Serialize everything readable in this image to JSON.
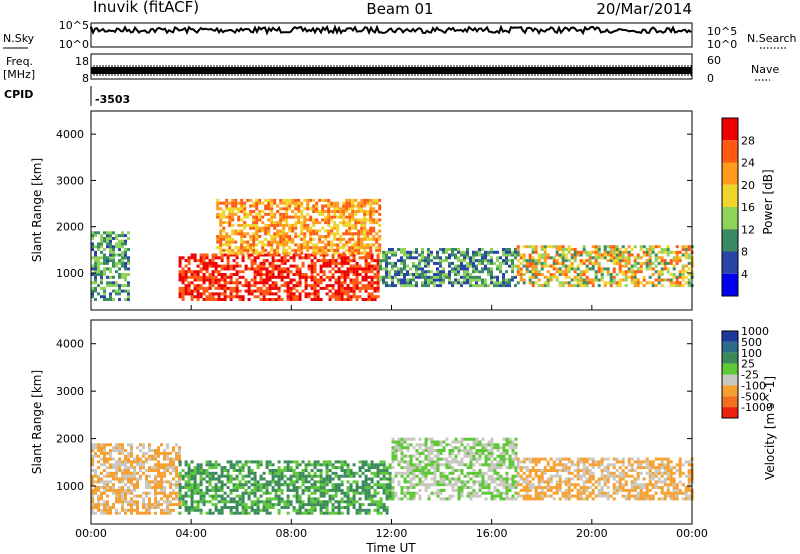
{
  "header": {
    "station": "Inuvik (fitACF)",
    "beam": "Beam 01",
    "date": "20/Mar/2014"
  },
  "strip_panels": {
    "nsky": {
      "label": "N.Sky",
      "right_label": "N.Search",
      "left_ticks": [
        "10^5",
        "10^0"
      ],
      "right_ticks": [
        "10^5",
        "10^0"
      ]
    },
    "freq": {
      "label_line1": "Freq.",
      "label_line2": "[MHz]",
      "right_label": "Nave",
      "left_ticks": [
        "18",
        "8"
      ],
      "right_ticks": [
        "60",
        "0"
      ]
    },
    "cpid": {
      "label": "CPID",
      "value": "-3503"
    }
  },
  "colors": {
    "power_scale": [
      "#0000ee",
      "#2a44a8",
      "#3c8a63",
      "#8fd35a",
      "#f0d52a",
      "#ff9a1a",
      "#ff5a10",
      "#ee0000"
    ],
    "velocity_scale": [
      "#1a3a9a",
      "#2e6a8a",
      "#3a8a5a",
      "#5ec836",
      "#c8c8c0",
      "#f5a030",
      "#f07020",
      "#ee2010"
    ],
    "gray": "#c8c8c0"
  },
  "chart_data": [
    {
      "type": "heatmap",
      "title": "",
      "xlabel": "Time UT",
      "ylabel": "Slant Range [km]",
      "colorbar_label": "Power [dB]",
      "x_ticks": [
        "00:00",
        "04:00",
        "08:00",
        "12:00",
        "16:00",
        "20:00",
        "00:00"
      ],
      "y_ticks": [
        "1000",
        "2000",
        "3000",
        "4000"
      ],
      "xlim_hours": [
        0,
        24
      ],
      "ylim_km": [
        200,
        4500
      ],
      "colorbar_ticks": [
        "4",
        "8",
        "12",
        "16",
        "20",
        "24",
        "28"
      ],
      "colorbar_range": [
        0,
        32
      ],
      "features": [
        {
          "start_h": 0.0,
          "end_h": 1.5,
          "range_km": [
            400,
            1900
          ],
          "power_db": [
            6,
            16
          ]
        },
        {
          "start_h": 3.5,
          "end_h": 11.5,
          "range_km": [
            400,
            1400
          ],
          "power_db": [
            24,
            32
          ]
        },
        {
          "start_h": 5.0,
          "end_h": 11.5,
          "range_km": [
            1400,
            2600
          ],
          "power_db": [
            16,
            28
          ]
        },
        {
          "start_h": 11.5,
          "end_h": 17.0,
          "range_km": [
            700,
            1500
          ],
          "power_db": [
            4,
            16
          ]
        },
        {
          "start_h": 17.0,
          "end_h": 24.0,
          "range_km": [
            700,
            1600
          ],
          "power_db": [
            8,
            28
          ]
        }
      ]
    },
    {
      "type": "heatmap",
      "title": "",
      "xlabel": "Time UT",
      "ylabel": "Slant Range [km]",
      "colorbar_label": "Velocity [m s^-1]",
      "x_ticks": [
        "00:00",
        "04:00",
        "08:00",
        "12:00",
        "16:00",
        "20:00",
        "00:00"
      ],
      "y_ticks": [
        "1000",
        "2000",
        "3000",
        "4000"
      ],
      "xlim_hours": [
        0,
        24
      ],
      "ylim_km": [
        200,
        4500
      ],
      "colorbar_ticks": [
        "1000",
        "500",
        "100",
        "25",
        "-25",
        "-100",
        "-500",
        "-1000"
      ],
      "features": [
        {
          "start_h": 0.0,
          "end_h": 3.5,
          "range_km": [
            400,
            1900
          ],
          "velocity": [
            -500,
            -100
          ]
        },
        {
          "start_h": 3.5,
          "end_h": 12.0,
          "range_km": [
            400,
            1500
          ],
          "velocity": [
            100,
            500
          ]
        },
        {
          "start_h": 12.0,
          "end_h": 17.0,
          "range_km": [
            700,
            2000
          ],
          "velocity": [
            -25,
            25
          ]
        },
        {
          "start_h": 17.0,
          "end_h": 24.0,
          "range_km": [
            700,
            1600
          ],
          "velocity": [
            -500,
            -100
          ]
        }
      ]
    }
  ]
}
